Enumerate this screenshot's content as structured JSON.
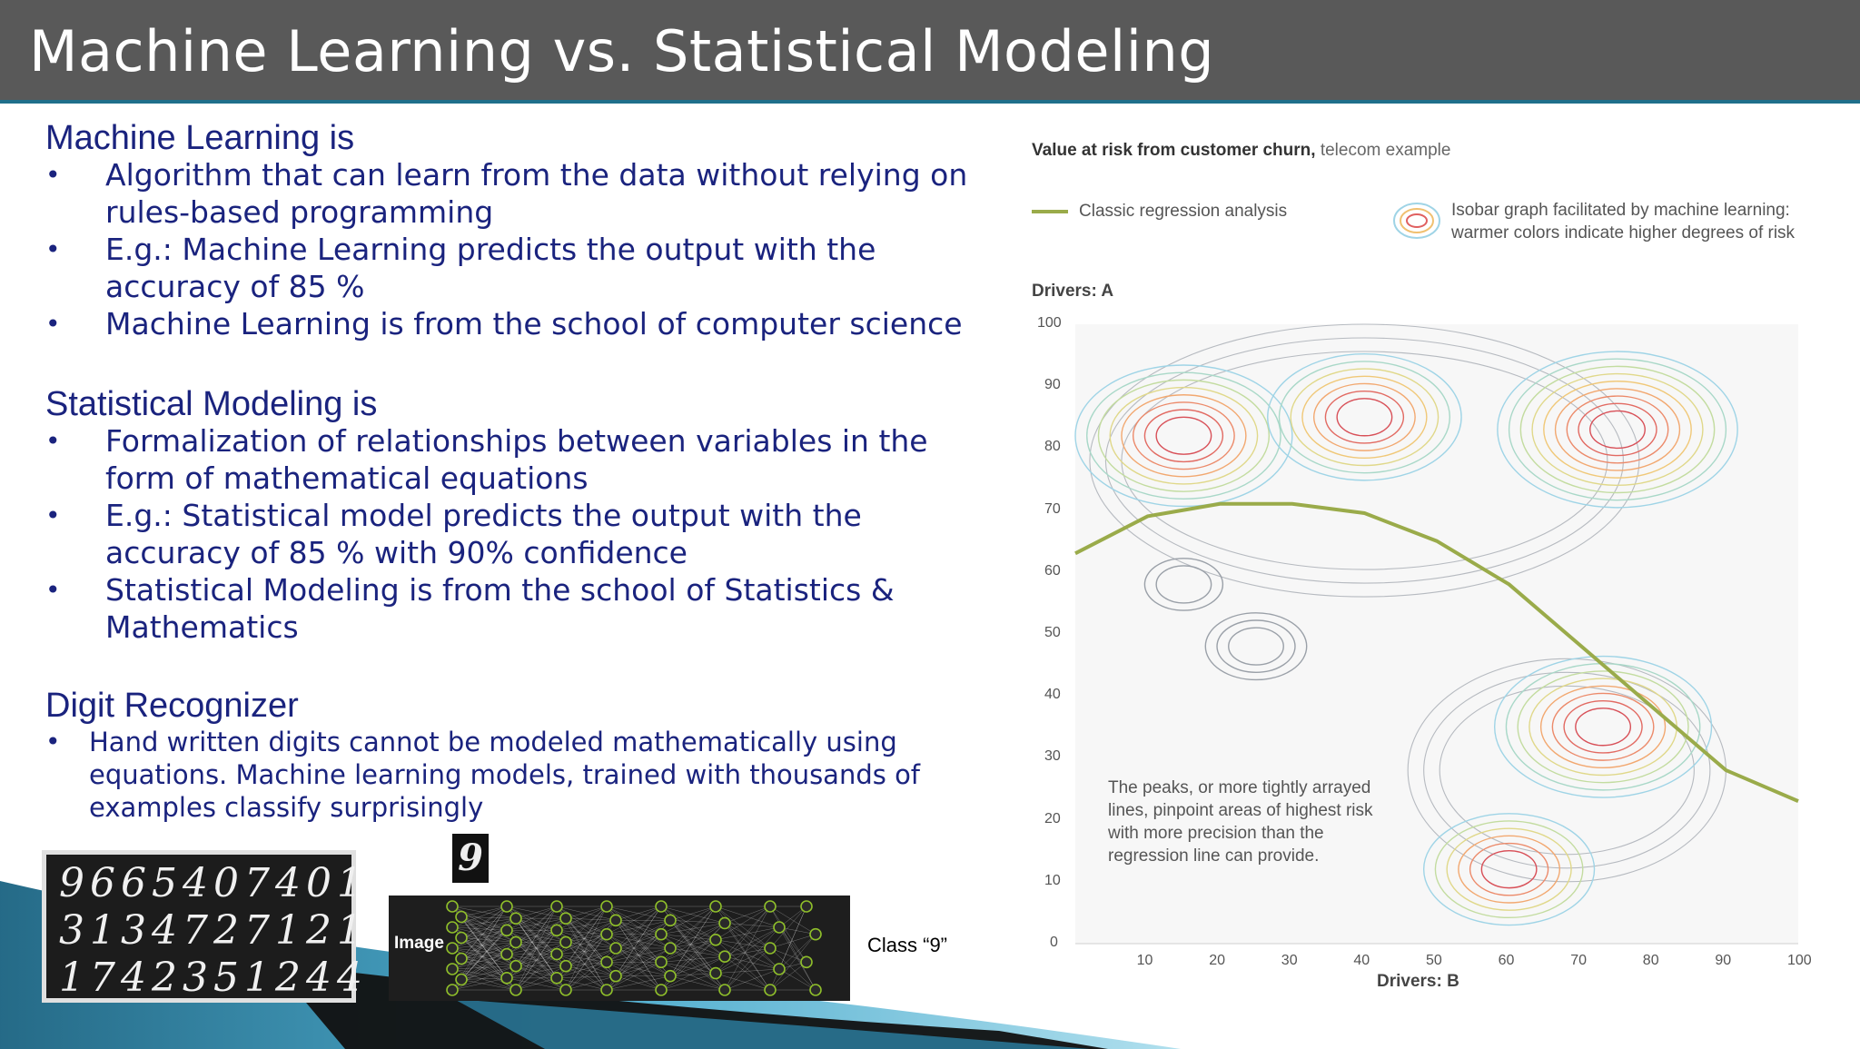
{
  "slide": {
    "title": "Machine Learning vs. Statistical Modeling"
  },
  "ml": {
    "heading": "Machine Learning is",
    "bullets": [
      "Algorithm that can learn from the data without relying on rules-based programming",
      "E.g.: Machine Learning predicts the output with the accuracy of 85 %",
      "Machine Learning is from the school of computer science"
    ]
  },
  "stat": {
    "heading": "Statistical Modeling is",
    "bullets": [
      "Formalization of relationships between variables in the form of mathematical equations",
      "E.g.: Statistical model predicts the output with the accuracy of 85 % with 90% confidence",
      "Statistical Modeling is from the school of Statistics & Mathematics"
    ]
  },
  "digit": {
    "heading": "Digit Recognizer",
    "bullets": [
      "Hand written digits cannot be modeled mathematically using equations. Machine learning models, trained with thousands of examples classify surprisingly"
    ],
    "sample_rows": [
      "9665407401",
      "3134727121",
      "1742351244"
    ],
    "single_digit": "9",
    "network_input_label": "Image",
    "class_label": "Class “9”"
  },
  "chart_data": {
    "type": "contour",
    "title_bold": "Value at risk from customer churn,",
    "title_rest": " telecom example",
    "legend": [
      {
        "name": "Classic regression analysis",
        "color": "#9aab4a"
      },
      {
        "name": "Isobar graph facilitated by machine learning: warmer colors indicate higher degrees of risk"
      }
    ],
    "ylabel": "Drivers: A",
    "xlabel": "Drivers: B",
    "xlim": [
      0,
      100
    ],
    "ylim": [
      0,
      100
    ],
    "x_ticks": [
      10,
      20,
      30,
      40,
      50,
      60,
      70,
      80,
      90,
      100
    ],
    "y_ticks": [
      0,
      10,
      20,
      30,
      40,
      50,
      60,
      70,
      80,
      90,
      100
    ],
    "regression_curve": {
      "x": [
        0,
        10,
        20,
        30,
        40,
        50,
        60,
        70,
        80,
        90,
        100
      ],
      "y": [
        63,
        69,
        71,
        71,
        69.5,
        65,
        58,
        48,
        38,
        28,
        23
      ]
    },
    "peaks": [
      {
        "x": 15,
        "y": 82,
        "rings": 8
      },
      {
        "x": 40,
        "y": 85,
        "rings": 7
      },
      {
        "x": 75,
        "y": 83,
        "rings": 9
      },
      {
        "x": 73,
        "y": 35,
        "rings": 8
      },
      {
        "x": 60,
        "y": 12,
        "rings": 6
      },
      {
        "x": 25,
        "y": 48,
        "rings": 3
      },
      {
        "x": 15,
        "y": 58,
        "rings": 2
      }
    ],
    "annotation": "The peaks, or more tightly arrayed lines, pinpoint areas of highest risk with more precision than the regression line can provide."
  }
}
